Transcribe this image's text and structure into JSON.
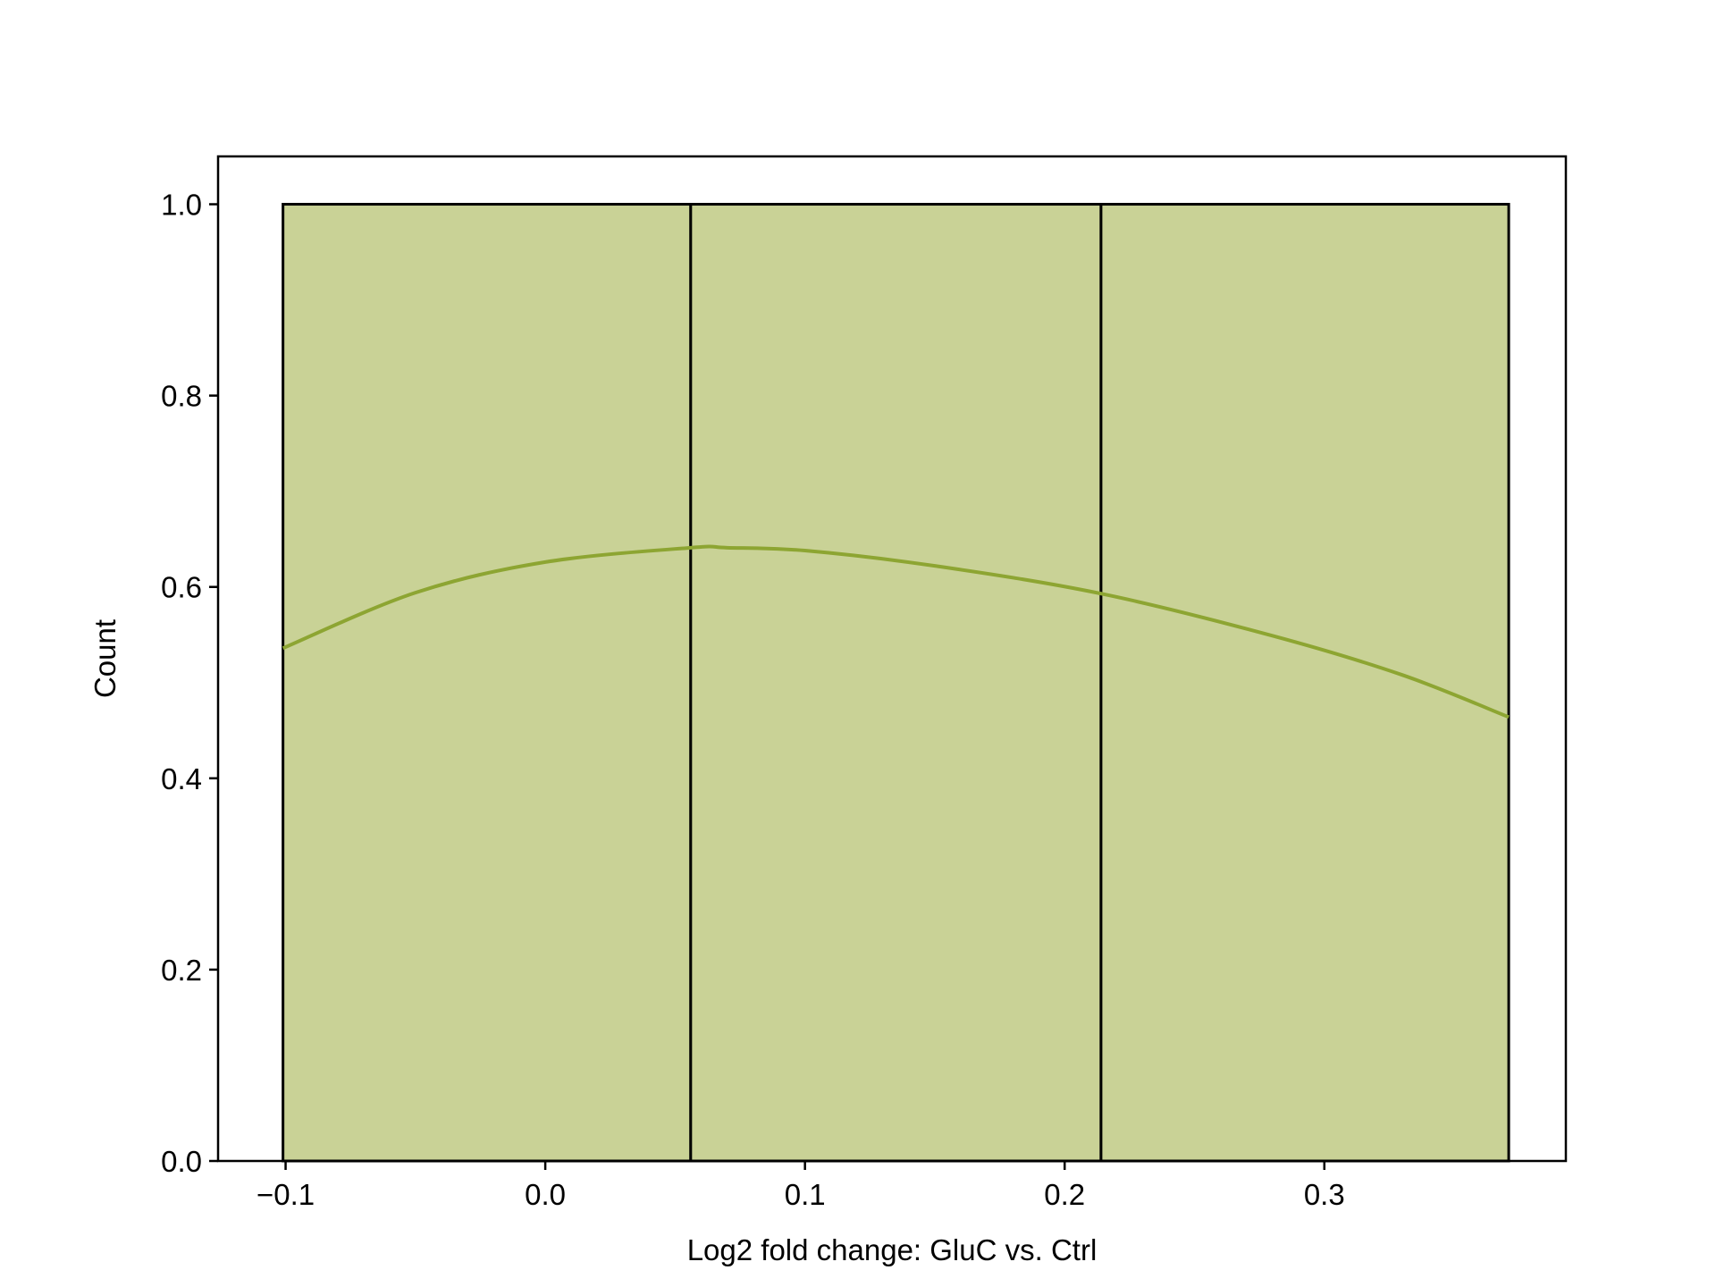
{
  "chart_data": {
    "type": "bar",
    "subtype": "histogram-with-kde",
    "title": "",
    "xlabel": "Log2 fold change: GluC vs. Ctrl",
    "ylabel": "Count",
    "xlim": [
      -0.126,
      0.393
    ],
    "ylim": [
      0.0,
      1.05
    ],
    "x_ticks": [
      -0.1,
      0.0,
      0.1,
      0.2,
      0.3
    ],
    "x_tick_labels": [
      "−0.1",
      "0.0",
      "0.1",
      "0.2",
      "0.3"
    ],
    "y_ticks": [
      0.0,
      0.2,
      0.4,
      0.6,
      0.8,
      1.0
    ],
    "y_tick_labels": [
      "0.0",
      "0.2",
      "0.4",
      "0.6",
      "0.8",
      "1.0"
    ],
    "bins": [
      {
        "x0": -0.101,
        "x1": 0.056,
        "count": 1.0
      },
      {
        "x0": 0.056,
        "x1": 0.214,
        "count": 1.0
      },
      {
        "x0": 0.214,
        "x1": 0.371,
        "count": 1.0
      }
    ],
    "kde": {
      "x": [
        -0.101,
        -0.05,
        0.0,
        0.056,
        0.07,
        0.1,
        0.15,
        0.214,
        0.28,
        0.33,
        0.371
      ],
      "y": [
        0.536,
        0.594,
        0.626,
        0.641,
        0.641,
        0.638,
        0.622,
        0.593,
        0.549,
        0.508,
        0.464
      ]
    },
    "colors": {
      "bar_fill": "#c9d296",
      "bar_edge": "#000000",
      "kde_line": "#8da532"
    },
    "grid": false,
    "legend": "none"
  }
}
